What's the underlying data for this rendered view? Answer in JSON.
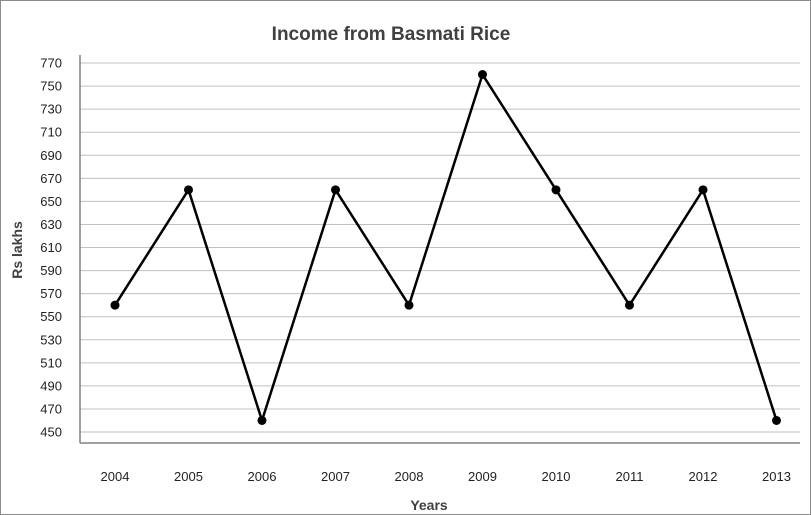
{
  "chart_data": {
    "type": "line",
    "title": "Income from Basmati Rice",
    "xlabel": "Years",
    "ylabel": "Rs lakhs",
    "categories": [
      "2004",
      "2005",
      "2006",
      "2007",
      "2008",
      "2009",
      "2010",
      "2011",
      "2012",
      "2013"
    ],
    "series": [
      {
        "values": [
          560,
          660,
          460,
          660,
          560,
          760,
          660,
          560,
          660,
          460
        ]
      }
    ],
    "ylim": [
      450,
      770
    ],
    "yticks": [
      450,
      470,
      490,
      510,
      530,
      550,
      570,
      590,
      610,
      630,
      650,
      670,
      690,
      710,
      730,
      750,
      770
    ],
    "grid": true,
    "legend": "none",
    "colors": {
      "line": "#000000",
      "grid": "#c0c0c0",
      "axis": "#808080"
    }
  }
}
